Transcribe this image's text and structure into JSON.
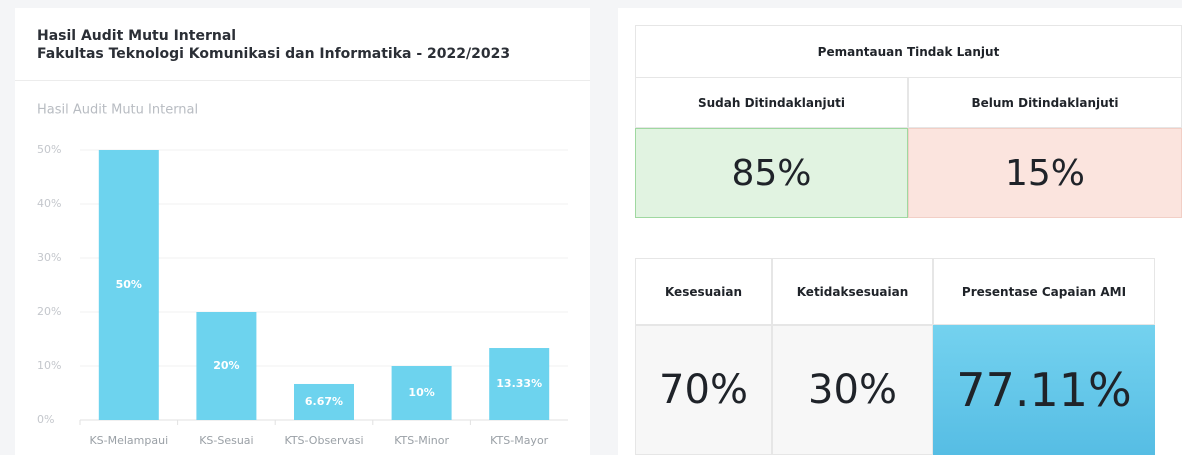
{
  "card": {
    "title": "Hasil Audit Mutu Internal",
    "subtitle": "Fakultas Teknologi Komunikasi dan Informatika - 2022/2023"
  },
  "chart_data": {
    "type": "bar",
    "title": "Hasil Audit Mutu Internal",
    "categories": [
      "KS-Melampaui",
      "KS-Sesuai",
      "KTS-Observasi",
      "KTS-Minor",
      "KTS-Mayor"
    ],
    "values": [
      50,
      20,
      6.67,
      10,
      13.33
    ],
    "value_labels": [
      "50%",
      "20%",
      "6.67%",
      "10%",
      "13.33%"
    ],
    "color": "#6dd3ee",
    "ylim": [
      0,
      50
    ],
    "yticks": [
      {
        "value": 0,
        "label": "0%"
      },
      {
        "value": 10,
        "label": "10%"
      },
      {
        "value": 20,
        "label": "20%"
      },
      {
        "value": 30,
        "label": "30%"
      },
      {
        "value": 40,
        "label": "40%"
      },
      {
        "value": 50,
        "label": "50%"
      }
    ],
    "grid": true
  },
  "follow_up": {
    "title": "Pemantauan Tindak Lanjut",
    "headers": [
      "Sudah Ditindaklanjuti",
      "Belum Ditindaklanjuti"
    ],
    "values": [
      "85%",
      "15%"
    ]
  },
  "summary": {
    "headers": [
      "Kesesuaian",
      "Ketidaksesuaian",
      "Presentase Capaian AMI"
    ],
    "values": [
      "70%",
      "30%",
      "77.11%"
    ]
  }
}
